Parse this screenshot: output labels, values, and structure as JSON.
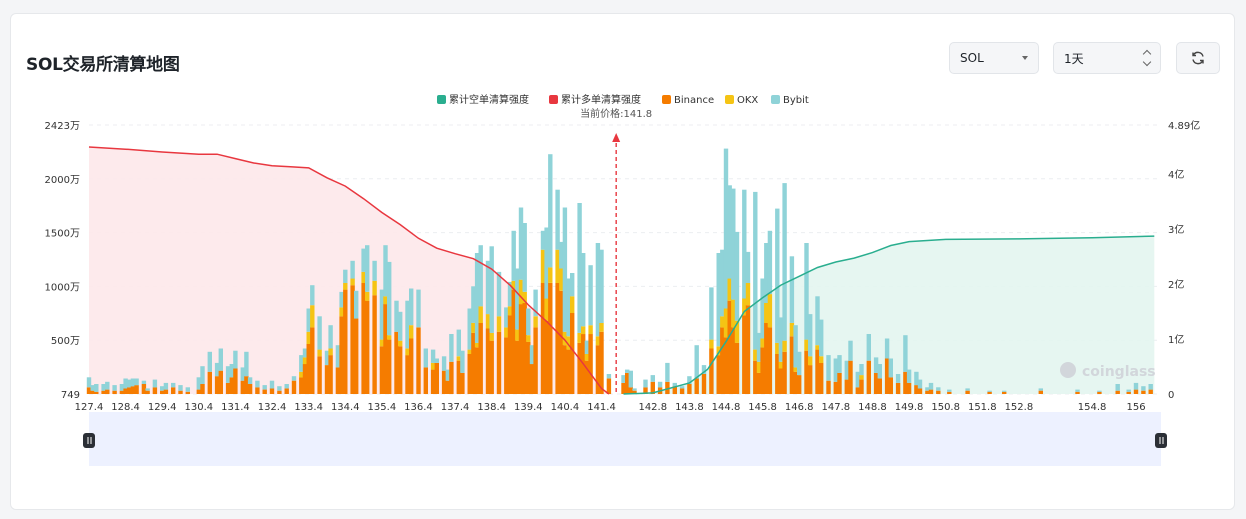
{
  "title": "SOL交易所清算地图",
  "controls": {
    "symbol": "SOL",
    "range": "1天"
  },
  "watermark": "coinglass",
  "chart_data": {
    "type": "bar",
    "current_price_label": "当前价格:141.8",
    "current_price": 141.8,
    "legend": [
      {
        "name": "累计空单清算强度",
        "color": "#2aae8f"
      },
      {
        "name": "累计多单清算强度",
        "color": "#e8373f"
      },
      {
        "name": "Binance",
        "color": "#f57c00"
      },
      {
        "name": "OKX",
        "color": "#f5c414"
      },
      {
        "name": "Bybit",
        "color": "#8fd3d8"
      }
    ],
    "left_axis": {
      "ticks": [
        "749",
        "500万",
        "1000万",
        "1500万",
        "2000万",
        "2423万"
      ],
      "max": 2423
    },
    "right_axis": {
      "ticks": [
        "0",
        "1亿",
        "2亿",
        "3亿",
        "4亿",
        "4.89亿"
      ],
      "max": 4.89
    },
    "x_tick_labels": [
      "127.4",
      "128.4",
      "129.4",
      "130.4",
      "131.4",
      "132.4",
      "133.4",
      "134.4",
      "135.4",
      "136.4",
      "137.4",
      "138.4",
      "139.4",
      "140.4",
      "141.4",
      "142.8",
      "143.8",
      "144.8",
      "145.8",
      "146.8",
      "147.8",
      "148.8",
      "149.8",
      "150.8",
      "151.8",
      "152.8",
      "154.8",
      "156"
    ],
    "x_range": [
      127.4,
      156.6
    ],
    "unit_left": "万",
    "unit_right": "亿",
    "bars": [
      [
        127.4,
        60,
        0,
        90
      ],
      [
        127.5,
        30,
        0,
        50
      ],
      [
        127.6,
        20,
        0,
        70
      ],
      [
        127.8,
        30,
        0,
        60
      ],
      [
        127.9,
        40,
        0,
        70
      ],
      [
        128.1,
        30,
        0,
        50
      ],
      [
        128.3,
        30,
        0,
        60
      ],
      [
        128.4,
        50,
        0,
        90
      ],
      [
        128.5,
        60,
        0,
        70
      ],
      [
        128.6,
        70,
        0,
        70
      ],
      [
        128.7,
        80,
        0,
        60
      ],
      [
        128.9,
        90,
        0,
        30
      ],
      [
        129.0,
        30,
        0,
        20
      ],
      [
        129.2,
        60,
        0,
        70
      ],
      [
        129.4,
        30,
        0,
        40
      ],
      [
        129.5,
        40,
        0,
        60
      ],
      [
        129.7,
        60,
        0,
        40
      ],
      [
        129.9,
        30,
        0,
        50
      ],
      [
        130.1,
        20,
        0,
        40
      ],
      [
        130.4,
        40,
        0,
        110
      ],
      [
        130.5,
        90,
        0,
        160
      ],
      [
        130.7,
        200,
        0,
        180
      ],
      [
        130.9,
        160,
        0,
        120
      ],
      [
        131.0,
        210,
        0,
        200
      ],
      [
        131.2,
        100,
        0,
        150
      ],
      [
        131.3,
        150,
        0,
        120
      ],
      [
        131.4,
        230,
        0,
        160
      ],
      [
        131.6,
        120,
        0,
        120
      ],
      [
        131.7,
        160,
        0,
        220
      ],
      [
        131.8,
        90,
        0,
        60
      ],
      [
        132.0,
        60,
        0,
        60
      ],
      [
        132.2,
        40,
        0,
        40
      ],
      [
        132.4,
        50,
        0,
        70
      ],
      [
        132.6,
        30,
        0,
        40
      ],
      [
        132.8,
        50,
        0,
        40
      ],
      [
        133.0,
        120,
        0,
        40
      ],
      [
        133.2,
        150,
        50,
        150
      ],
      [
        133.3,
        270,
        60,
        80
      ],
      [
        133.4,
        450,
        110,
        210
      ],
      [
        133.5,
        600,
        200,
        180
      ],
      [
        133.7,
        340,
        60,
        300
      ],
      [
        133.9,
        260,
        0,
        130
      ],
      [
        134.0,
        350,
        60,
        210
      ],
      [
        134.2,
        240,
        0,
        200
      ],
      [
        134.3,
        700,
        80,
        140
      ],
      [
        134.4,
        940,
        60,
        120
      ],
      [
        134.6,
        980,
        60,
        160
      ],
      [
        134.7,
        680,
        0,
        250
      ],
      [
        134.9,
        1000,
        100,
        210
      ],
      [
        135.0,
        840,
        80,
        420
      ],
      [
        135.2,
        890,
        130,
        180
      ],
      [
        135.4,
        430,
        60,
        450
      ],
      [
        135.5,
        810,
        70,
        460
      ],
      [
        135.6,
        490,
        40,
        660
      ],
      [
        135.8,
        560,
        0,
        280
      ],
      [
        135.9,
        430,
        50,
        260
      ],
      [
        136.1,
        350,
        60,
        430
      ],
      [
        136.2,
        500,
        120,
        330
      ],
      [
        136.4,
        600,
        0,
        340
      ],
      [
        136.6,
        240,
        0,
        170
      ],
      [
        136.8,
        220,
        60,
        120
      ],
      [
        136.9,
        280,
        0,
        40
      ],
      [
        137.1,
        210,
        0,
        130
      ],
      [
        137.2,
        120,
        0,
        100
      ],
      [
        137.3,
        290,
        0,
        250
      ],
      [
        137.5,
        300,
        40,
        240
      ],
      [
        137.6,
        190,
        0,
        200
      ],
      [
        137.8,
        360,
        40,
        370
      ],
      [
        137.9,
        550,
        90,
        330
      ],
      [
        138.0,
        420,
        40,
        810
      ],
      [
        138.1,
        640,
        150,
        550
      ],
      [
        138.3,
        590,
        130,
        480
      ],
      [
        138.4,
        480,
        70,
        780
      ],
      [
        138.6,
        560,
        140,
        400
      ],
      [
        138.8,
        510,
        90,
        180
      ],
      [
        138.9,
        710,
        80,
        220
      ],
      [
        139.0,
        940,
        80,
        450
      ],
      [
        139.1,
        480,
        100,
        550
      ],
      [
        139.2,
        810,
        220,
        650
      ],
      [
        139.3,
        820,
        100,
        620
      ],
      [
        139.4,
        470,
        60,
        240
      ],
      [
        139.5,
        270,
        0,
        170
      ],
      [
        139.6,
        600,
        100,
        240
      ],
      [
        139.8,
        1000,
        300,
        170
      ],
      [
        139.9,
        660,
        200,
        640
      ],
      [
        140.0,
        1000,
        140,
        1020
      ],
      [
        140.2,
        1000,
        300,
        540
      ],
      [
        140.3,
        930,
        200,
        240
      ],
      [
        140.4,
        440,
        120,
        1120
      ],
      [
        140.5,
        400,
        120,
        520
      ],
      [
        140.6,
        730,
        150,
        210
      ],
      [
        140.8,
        460,
        90,
        1170
      ],
      [
        140.9,
        540,
        70,
        660
      ],
      [
        141.0,
        300,
        60,
        120
      ],
      [
        141.1,
        540,
        80,
        540
      ],
      [
        141.3,
        440,
        80,
        840
      ],
      [
        141.4,
        560,
        80,
        660
      ],
      [
        141.6,
        140,
        0,
        40
      ],
      [
        142.0,
        100,
        0,
        70
      ],
      [
        142.1,
        190,
        0,
        30
      ],
      [
        142.2,
        60,
        0,
        150
      ],
      [
        142.3,
        30,
        0,
        20
      ],
      [
        142.6,
        60,
        0,
        70
      ],
      [
        142.8,
        110,
        0,
        60
      ],
      [
        143.0,
        60,
        0,
        50
      ],
      [
        143.2,
        110,
        0,
        170
      ],
      [
        143.4,
        70,
        0,
        30
      ],
      [
        143.6,
        50,
        0,
        20
      ],
      [
        143.8,
        90,
        0,
        70
      ],
      [
        144.0,
        140,
        0,
        300
      ],
      [
        144.2,
        180,
        0,
        80
      ],
      [
        144.4,
        410,
        80,
        470
      ],
      [
        144.6,
        350,
        80,
        840
      ],
      [
        144.7,
        600,
        100,
        600
      ],
      [
        144.8,
        510,
        260,
        1440
      ],
      [
        144.9,
        840,
        200,
        840
      ],
      [
        145.0,
        600,
        250,
        1000
      ],
      [
        145.1,
        460,
        200,
        800
      ],
      [
        145.3,
        710,
        150,
        980
      ],
      [
        145.4,
        800,
        200,
        280
      ],
      [
        145.6,
        300,
        100,
        1420
      ],
      [
        145.7,
        190,
        100,
        260
      ],
      [
        145.8,
        420,
        80,
        540
      ],
      [
        145.9,
        640,
        180,
        540
      ],
      [
        146.0,
        600,
        300,
        570
      ],
      [
        146.2,
        360,
        100,
        1210
      ],
      [
        146.3,
        230,
        60,
        400
      ],
      [
        146.4,
        380,
        100,
        1420
      ],
      [
        146.6,
        520,
        120,
        600
      ],
      [
        146.7,
        200,
        40,
        380
      ],
      [
        146.8,
        170,
        0,
        210
      ],
      [
        147.0,
        390,
        100,
        870
      ],
      [
        147.1,
        260,
        80,
        380
      ],
      [
        147.3,
        400,
        40,
        440
      ],
      [
        147.4,
        280,
        60,
        330
      ],
      [
        147.6,
        120,
        0,
        230
      ],
      [
        147.8,
        110,
        0,
        210
      ],
      [
        147.9,
        190,
        0,
        160
      ],
      [
        148.1,
        130,
        0,
        170
      ],
      [
        148.2,
        300,
        0,
        180
      ],
      [
        148.4,
        60,
        0,
        140
      ],
      [
        148.5,
        130,
        40,
        100
      ],
      [
        148.7,
        300,
        0,
        240
      ],
      [
        148.9,
        190,
        0,
        140
      ],
      [
        149.0,
        140,
        0,
        130
      ],
      [
        149.2,
        320,
        0,
        180
      ],
      [
        149.3,
        150,
        0,
        170
      ],
      [
        149.5,
        100,
        0,
        80
      ],
      [
        149.7,
        200,
        0,
        330
      ],
      [
        149.8,
        100,
        0,
        120
      ],
      [
        150.0,
        80,
        0,
        120
      ],
      [
        150.1,
        50,
        0,
        80
      ],
      [
        150.3,
        30,
        0,
        30
      ],
      [
        150.4,
        40,
        0,
        60
      ],
      [
        150.6,
        30,
        0,
        30
      ],
      [
        150.9,
        20,
        0,
        20
      ],
      [
        151.4,
        30,
        0,
        20
      ],
      [
        152.0,
        20,
        0,
        10
      ],
      [
        152.4,
        20,
        0,
        10
      ],
      [
        153.4,
        30,
        0,
        20
      ],
      [
        154.4,
        20,
        0,
        20
      ],
      [
        155.0,
        20,
        0,
        10
      ],
      [
        155.5,
        30,
        0,
        60
      ],
      [
        155.8,
        20,
        0,
        20
      ],
      [
        156.0,
        40,
        0,
        60
      ],
      [
        156.2,
        30,
        0,
        40
      ],
      [
        156.4,
        40,
        0,
        50
      ]
    ],
    "cumulative_long": [
      [
        127.4,
        4.49
      ],
      [
        128.4,
        4.45
      ],
      [
        129.4,
        4.4
      ],
      [
        130.4,
        4.36
      ],
      [
        130.9,
        4.36
      ],
      [
        131.4,
        4.28
      ],
      [
        131.9,
        4.2
      ],
      [
        132.4,
        4.15
      ],
      [
        132.9,
        4.13
      ],
      [
        133.4,
        4.11
      ],
      [
        133.9,
        3.93
      ],
      [
        134.4,
        3.78
      ],
      [
        134.9,
        3.55
      ],
      [
        135.4,
        3.3
      ],
      [
        135.9,
        3.08
      ],
      [
        136.4,
        2.83
      ],
      [
        136.9,
        2.65
      ],
      [
        137.4,
        2.55
      ],
      [
        137.9,
        2.46
      ],
      [
        138.4,
        2.27
      ],
      [
        138.9,
        1.98
      ],
      [
        139.4,
        1.62
      ],
      [
        139.9,
        1.32
      ],
      [
        140.4,
        0.98
      ],
      [
        140.9,
        0.55
      ],
      [
        141.4,
        0.1
      ],
      [
        141.6,
        0
      ]
    ],
    "cumulative_short": [
      [
        142.0,
        0
      ],
      [
        142.8,
        0.02
      ],
      [
        143.8,
        0.2
      ],
      [
        144.3,
        0.45
      ],
      [
        144.8,
        0.95
      ],
      [
        145.3,
        1.5
      ],
      [
        145.8,
        1.75
      ],
      [
        146.3,
        1.98
      ],
      [
        146.8,
        2.14
      ],
      [
        147.3,
        2.3
      ],
      [
        147.8,
        2.4
      ],
      [
        148.3,
        2.47
      ],
      [
        148.8,
        2.57
      ],
      [
        149.3,
        2.7
      ],
      [
        149.8,
        2.77
      ],
      [
        150.8,
        2.81
      ],
      [
        152.8,
        2.82
      ],
      [
        154.8,
        2.84
      ],
      [
        156.5,
        2.87
      ]
    ]
  }
}
